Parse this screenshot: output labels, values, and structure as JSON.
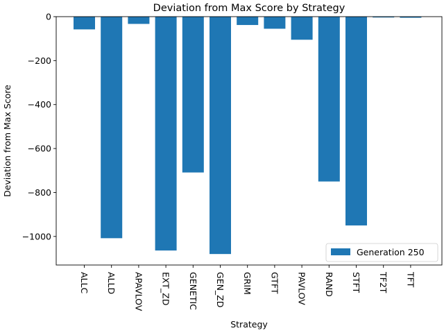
{
  "chart_data": {
    "type": "bar",
    "title": "Deviation from Max Score by Strategy",
    "xlabel": "Strategy",
    "ylabel": "Deviation from Max Score",
    "categories": [
      "ALLC",
      "ALLD",
      "APAVLOV",
      "EXT_ZD",
      "GENETIC",
      "GEN_ZD",
      "GRIM",
      "GTFT",
      "PAVLOV",
      "RAND",
      "STFT",
      "TF2T",
      "TFT"
    ],
    "series": [
      {
        "name": "Generation 250",
        "color": "#1f77b4",
        "values": [
          -58,
          -1008,
          -33,
          -1064,
          -709,
          -1080,
          -38,
          -55,
          -105,
          -750,
          -950,
          0,
          -5
        ]
      }
    ],
    "ylim": [
      -1130,
      0
    ],
    "yticks": [
      0,
      -200,
      -400,
      -600,
      -800,
      -1000
    ],
    "ytick_labels": [
      "0",
      "−200",
      "−400",
      "−600",
      "−800",
      "−1000"
    ],
    "grid": false,
    "legend_position": "lower-right"
  }
}
